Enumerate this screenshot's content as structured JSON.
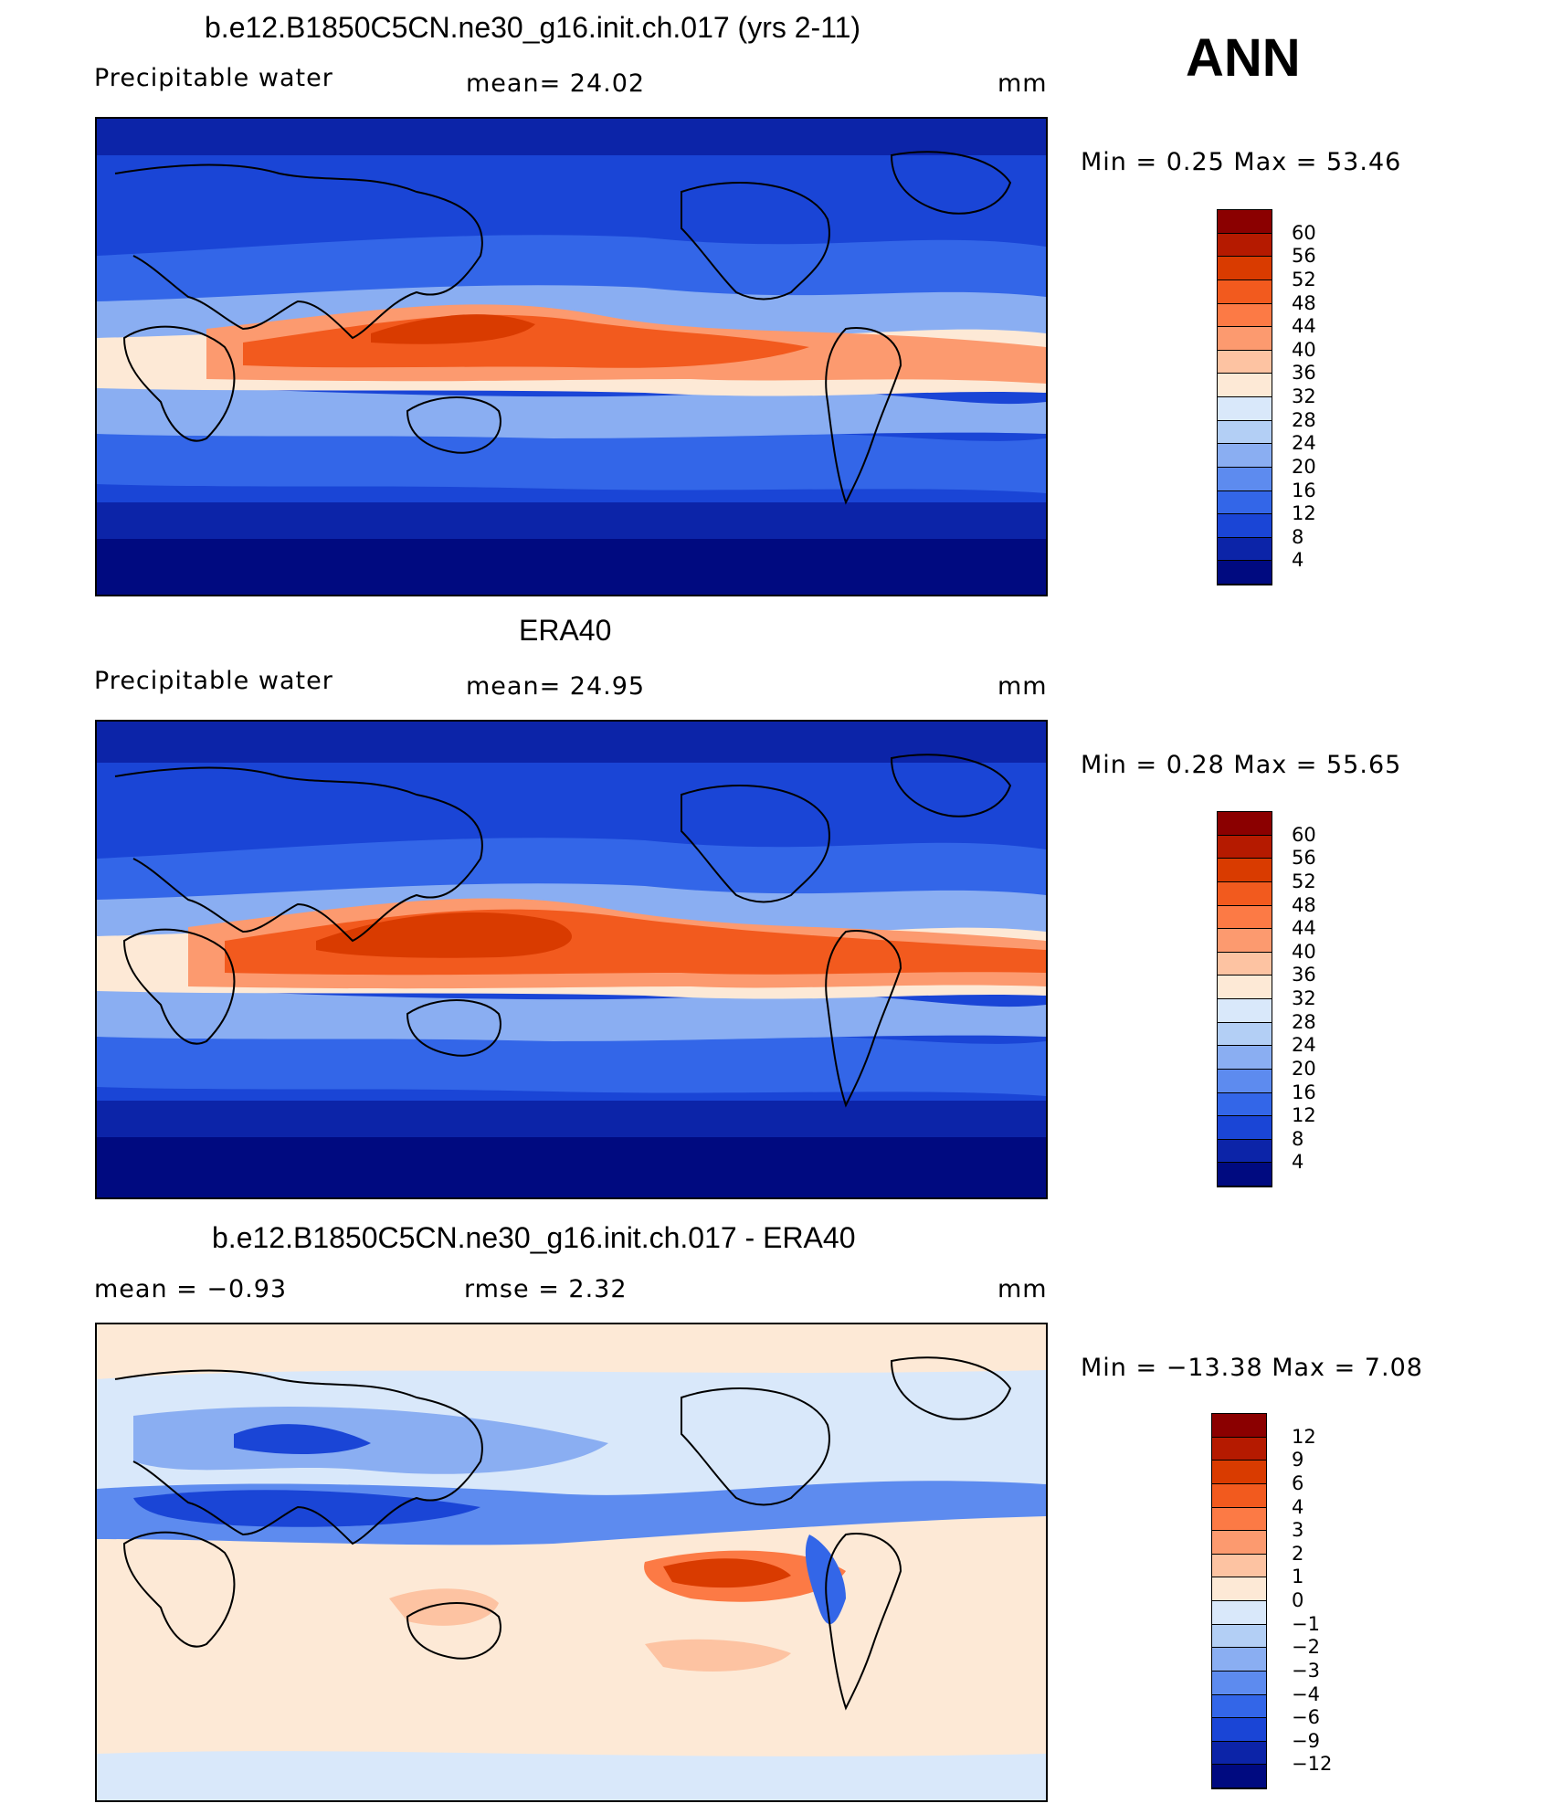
{
  "header": {
    "season": "ANN"
  },
  "panels": [
    {
      "title": "b.e12.B1850C5CN.ne30_g16.init.ch.017 (yrs 2-11)",
      "left": "Precipitable  water",
      "center": "mean=   24.02",
      "units": "mm",
      "minmax": "Min  =     0.25  Max  =    53.46",
      "kind": "abs"
    },
    {
      "title": "ERA40",
      "left": "Precipitable  water",
      "center": "mean=   24.95",
      "units": "mm",
      "minmax": "Min  =     0.28  Max  =    55.65",
      "kind": "abs"
    },
    {
      "title": "b.e12.B1850C5CN.ne30_g16.init.ch.017 - ERA40",
      "left": "mean  =    −0.93",
      "center": "rmse  =     2.32",
      "units": "mm",
      "minmax": "Min  =  −13.38  Max  =     7.08",
      "kind": "diff"
    }
  ],
  "colorbars": {
    "abs": {
      "labels": [
        "60",
        "56",
        "52",
        "48",
        "44",
        "40",
        "36",
        "32",
        "28",
        "24",
        "20",
        "16",
        "12",
        "8",
        "4"
      ],
      "colors": [
        "#8b0000",
        "#b51a00",
        "#d93b00",
        "#f25a1e",
        "#fc7a45",
        "#fc9a6f",
        "#fdc3a2",
        "#fde9d6",
        "#d9e8fa",
        "#b3cff5",
        "#8aaef2",
        "#5d8bef",
        "#3366e8",
        "#1a45d6",
        "#0c24a8",
        "#000a80"
      ]
    },
    "diff": {
      "labels": [
        "12",
        "9",
        "6",
        "4",
        "3",
        "2",
        "1",
        "0",
        "−1",
        "−2",
        "−3",
        "−4",
        "−6",
        "−9",
        "−12"
      ],
      "colors": [
        "#8b0000",
        "#b51a00",
        "#d93b00",
        "#f25a1e",
        "#fc7a45",
        "#fc9a6f",
        "#fdc3a2",
        "#fde9d6",
        "#d9e8fa",
        "#b3cff5",
        "#8aaef2",
        "#5d8bef",
        "#3366e8",
        "#1a45d6",
        "#0c24a8",
        "#000a80"
      ]
    }
  }
}
